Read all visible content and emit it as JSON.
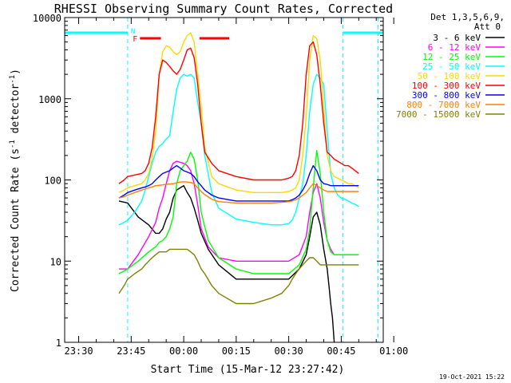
{
  "chart_data": {
    "type": "line",
    "title": "RHESSI Observing Summary Count Rates, Corrected",
    "xlabel": "Start Time (15-Mar-12 23:27:42)",
    "ylabel_main": "Corrected Count Rate (s",
    "ylabel_sup1": "-1",
    "ylabel_mid": " detector",
    "ylabel_sup2": "-1",
    "ylabel_end": ")",
    "yscale": "log",
    "ylim": [
      1,
      10000
    ],
    "xlim_minutes": [
      -34,
      57
    ],
    "x_unit": "minutes relative to 00:00",
    "x_ticks": [
      {
        "value": -30,
        "label": "23:30"
      },
      {
        "value": -15,
        "label": "23:45"
      },
      {
        "value": 0,
        "label": "00:00"
      },
      {
        "value": 15,
        "label": "00:15"
      },
      {
        "value": 30,
        "label": "00:30"
      },
      {
        "value": 45,
        "label": "00:45"
      },
      {
        "value": 60,
        "label": "01:00"
      }
    ],
    "y_ticks": [
      {
        "value": 1,
        "label": "1"
      },
      {
        "value": 10,
        "label": "10"
      },
      {
        "value": 100,
        "label": "100"
      },
      {
        "value": 1000,
        "label": "1000"
      },
      {
        "value": 10000,
        "label": "10000"
      }
    ],
    "legend_header": [
      "Det 1,3,5,6,9,",
      "Att 0"
    ],
    "series": [
      {
        "name": "3 - 6 keV",
        "color": "#000000",
        "x": [
          -18.5,
          -16,
          -13,
          -10,
          -8,
          -7,
          -6,
          -5,
          -4,
          -3,
          -2,
          -1,
          0,
          1,
          2,
          3,
          4,
          5,
          7,
          10,
          15,
          20,
          25,
          28,
          30,
          33,
          35,
          36,
          37,
          38,
          39,
          40,
          41,
          41.5,
          42,
          42.5,
          43
        ],
        "y": [
          55,
          52,
          35,
          28,
          22,
          22,
          25,
          33,
          40,
          60,
          75,
          80,
          85,
          70,
          60,
          45,
          32,
          22,
          14,
          9,
          6,
          6,
          6,
          6,
          6,
          8,
          12,
          20,
          35,
          40,
          28,
          14,
          8,
          5,
          3,
          2,
          1
        ]
      },
      {
        "name": "6 - 12 keV",
        "color": "#ff00ff",
        "x": [
          -18.5,
          -16,
          -13,
          -10,
          -8,
          -7,
          -6,
          -5,
          -4,
          -3,
          -2,
          -1,
          0,
          1,
          2,
          3,
          4,
          5,
          7,
          10,
          15,
          20,
          25,
          28,
          30,
          33,
          35,
          36,
          37,
          38,
          39,
          40,
          41,
          42,
          43,
          44,
          45,
          46,
          47,
          48,
          49,
          50
        ],
        "y": [
          8,
          8,
          12,
          20,
          30,
          45,
          60,
          90,
          130,
          160,
          170,
          165,
          160,
          150,
          130,
          90,
          50,
          25,
          15,
          11,
          10,
          10,
          10,
          10,
          10,
          12,
          20,
          40,
          70,
          90,
          60,
          30,
          18,
          14,
          12,
          12,
          12,
          12,
          12,
          12,
          12,
          12
        ]
      },
      {
        "name": "12 - 25 keV",
        "color": "#00ff00",
        "x": [
          -18.5,
          -16,
          -13,
          -10,
          -8,
          -7,
          -6,
          -5,
          -4,
          -3,
          -2,
          -1,
          0,
          1,
          2,
          3,
          4,
          5,
          7,
          10,
          15,
          20,
          25,
          28,
          30,
          33,
          35,
          36,
          37,
          38,
          39,
          40,
          41,
          42,
          43,
          44,
          45,
          46,
          47,
          48,
          49,
          50
        ],
        "y": [
          7,
          8,
          10,
          13,
          15,
          17,
          18,
          20,
          25,
          35,
          90,
          130,
          150,
          170,
          220,
          180,
          100,
          40,
          18,
          11,
          8,
          7,
          7,
          7,
          7,
          9,
          14,
          25,
          80,
          230,
          120,
          40,
          18,
          13,
          12,
          12,
          12,
          12,
          12,
          12,
          12,
          12
        ]
      },
      {
        "name": "25 - 50 keV",
        "color": "#00ffff",
        "x": [
          -18.5,
          -17,
          -16,
          -14,
          -12,
          -11,
          -10,
          -9,
          -8,
          -7,
          -6,
          -5,
          -4,
          -3,
          -2,
          -1,
          0,
          1,
          2,
          3,
          4,
          5,
          6,
          8,
          10,
          15,
          20,
          25,
          28,
          30,
          31,
          32,
          33,
          34,
          35,
          36,
          37,
          38,
          39,
          40,
          41,
          42,
          43,
          44,
          45,
          46,
          47,
          48,
          49,
          50
        ],
        "y": [
          28,
          30,
          32,
          40,
          55,
          75,
          110,
          160,
          220,
          260,
          280,
          320,
          350,
          700,
          1300,
          1800,
          2000,
          1900,
          2000,
          1800,
          900,
          500,
          200,
          70,
          45,
          33,
          30,
          28,
          28,
          29,
          32,
          40,
          60,
          90,
          200,
          700,
          1500,
          2000,
          1800,
          1500,
          400,
          120,
          80,
          65,
          60,
          58,
          55,
          52,
          50,
          47
        ]
      },
      {
        "name": "50 - 100 keV",
        "color": "#ffd700",
        "x": [
          -18.5,
          -17,
          -16,
          -14,
          -12,
          -11,
          -10,
          -9,
          -8,
          -7,
          -6,
          -5,
          -4,
          -3,
          -2,
          -1,
          0,
          1,
          2,
          3,
          4,
          5,
          6,
          8,
          10,
          15,
          20,
          25,
          28,
          30,
          31,
          32,
          33,
          34,
          35,
          36,
          37,
          38,
          39,
          40,
          41,
          42,
          43,
          44,
          45,
          46,
          47,
          48,
          49,
          50
        ],
        "y": [
          70,
          75,
          80,
          85,
          90,
          100,
          120,
          180,
          400,
          2000,
          3800,
          4500,
          4300,
          3800,
          3500,
          3800,
          5000,
          6000,
          6500,
          5000,
          2000,
          800,
          250,
          110,
          90,
          75,
          70,
          70,
          70,
          72,
          75,
          80,
          100,
          200,
          600,
          3000,
          6000,
          5500,
          3000,
          800,
          200,
          130,
          110,
          105,
          100,
          95,
          90,
          90,
          85,
          80
        ]
      },
      {
        "name": "100 - 300 keV",
        "color": "#ff0000",
        "x": [
          -18.5,
          -17,
          -16,
          -14,
          -12,
          -11,
          -10,
          -9,
          -8,
          -7,
          -6,
          -5,
          -4,
          -3,
          -2,
          -1,
          0,
          1,
          2,
          3,
          4,
          5,
          6,
          8,
          10,
          15,
          20,
          25,
          28,
          30,
          31,
          32,
          33,
          34,
          35,
          36,
          37,
          38,
          39,
          40,
          41,
          42,
          43,
          44,
          45,
          46,
          47,
          48,
          49,
          50
        ],
        "y": [
          90,
          100,
          110,
          115,
          120,
          130,
          160,
          250,
          600,
          2000,
          3000,
          2800,
          2500,
          2200,
          2000,
          2300,
          3000,
          4000,
          4200,
          3200,
          1500,
          500,
          220,
          160,
          130,
          110,
          100,
          100,
          100,
          105,
          110,
          130,
          200,
          500,
          2000,
          4500,
          5000,
          3500,
          1500,
          500,
          220,
          200,
          180,
          170,
          160,
          150,
          150,
          140,
          130,
          120
        ]
      },
      {
        "name": "300 - 800 keV",
        "color": "#0000ff",
        "x": [
          -18.5,
          -17,
          -16,
          -14,
          -12,
          -11,
          -10,
          -9,
          -8,
          -7,
          -6,
          -5,
          -4,
          -3,
          -2,
          -1,
          0,
          1,
          2,
          3,
          4,
          5,
          6,
          8,
          10,
          15,
          20,
          25,
          28,
          30,
          31,
          32,
          33,
          34,
          35,
          36,
          37,
          38,
          39,
          40,
          41,
          42,
          43,
          44,
          45,
          46,
          47,
          48,
          49,
          50
        ],
        "y": [
          60,
          65,
          70,
          75,
          80,
          82,
          85,
          90,
          100,
          110,
          120,
          125,
          130,
          140,
          150,
          140,
          130,
          125,
          120,
          110,
          95,
          85,
          75,
          65,
          60,
          55,
          55,
          55,
          55,
          55,
          57,
          60,
          65,
          75,
          90,
          120,
          150,
          130,
          100,
          90,
          88,
          85,
          85,
          85,
          85,
          85,
          85,
          85,
          85,
          85
        ]
      },
      {
        "name": "800 - 7000 keV",
        "color": "#ff8000",
        "x": [
          -18.5,
          -17,
          -16,
          -14,
          -12,
          -11,
          -10,
          -9,
          -8,
          -7,
          -6,
          -5,
          -4,
          -3,
          -2,
          -1,
          0,
          1,
          2,
          3,
          4,
          5,
          6,
          8,
          10,
          15,
          20,
          25,
          28,
          30,
          31,
          32,
          33,
          34,
          35,
          36,
          37,
          38,
          39,
          40,
          41,
          42,
          43,
          44,
          45,
          46,
          47,
          48,
          49,
          50
        ],
        "y": [
          60,
          62,
          65,
          70,
          75,
          77,
          80,
          82,
          85,
          86,
          87,
          88,
          89,
          90,
          92,
          94,
          95,
          94,
          93,
          90,
          80,
          72,
          66,
          58,
          54,
          52,
          52,
          52,
          53,
          54,
          55,
          57,
          60,
          65,
          70,
          80,
          90,
          85,
          80,
          75,
          72,
          72,
          72,
          72,
          72,
          72,
          72,
          72,
          72,
          72
        ]
      },
      {
        "name": "7000 - 15000 keV",
        "color": "#808000",
        "x": [
          -18.5,
          -17,
          -16,
          -14,
          -12,
          -11,
          -10,
          -9,
          -8,
          -7,
          -6,
          -5,
          -4,
          -3,
          -2,
          -1,
          0,
          1,
          2,
          3,
          4,
          5,
          6,
          8,
          10,
          15,
          20,
          25,
          28,
          30,
          31,
          32,
          33,
          34,
          35,
          36,
          37,
          38,
          39,
          40,
          41,
          42,
          43,
          44,
          45,
          46,
          47,
          48,
          49,
          50
        ],
        "y": [
          4,
          5,
          6,
          7,
          8,
          9,
          10,
          11,
          12,
          13,
          13,
          13,
          14,
          14,
          14,
          14,
          14,
          14,
          13,
          12,
          10,
          8,
          7,
          5,
          4,
          3,
          3,
          3.5,
          4,
          5,
          6,
          7,
          8,
          9,
          10,
          11,
          11,
          10,
          9,
          9,
          9,
          9,
          9,
          9,
          9,
          9,
          9,
          9,
          9,
          9
        ]
      }
    ],
    "annotations": {
      "flags": [
        {
          "label": "N",
          "color": "#00ffff"
        },
        {
          "label": "F",
          "color": "#ff0000"
        }
      ],
      "night_intervals_minutes": [
        [
          -34,
          -16
        ],
        [
          45.5,
          57
        ]
      ],
      "flare_intervals_minutes": [
        [
          -12.5,
          -6.5
        ],
        [
          4.5,
          13
        ]
      ],
      "vertical_dashed_minutes": [
        -34,
        -16,
        45.5,
        55.5
      ]
    },
    "timestamp": "19-Oct-2021 15:22"
  }
}
